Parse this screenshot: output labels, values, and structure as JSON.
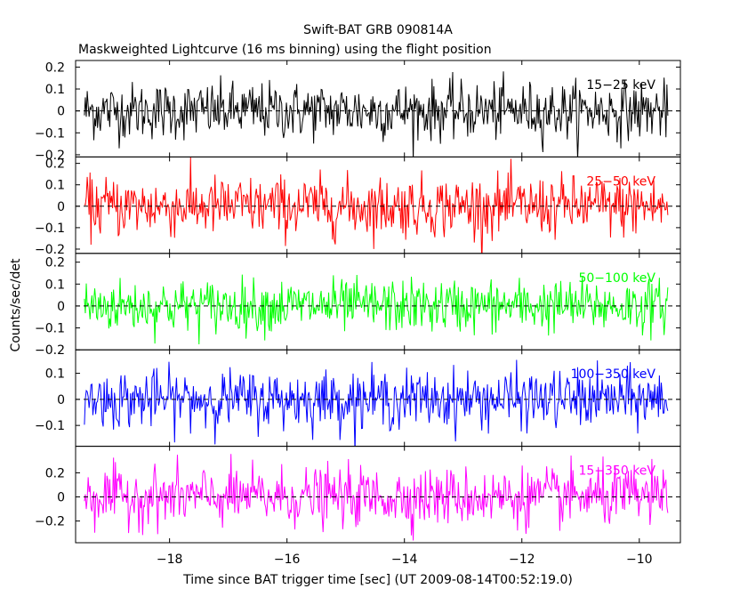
{
  "title": "Swift-BAT GRB 090814A",
  "subtitle": "Maskweighted Lightcurve (16 ms binning) using the flight position",
  "ylabel": "Counts/sec/det",
  "xlabel": "Time since BAT trigger time [sec] (UT 2009-08-14T00:52:19.0)",
  "chart_data": {
    "type": "line",
    "title": "Swift-BAT GRB 090814A",
    "subtitle": "Maskweighted Lightcurve (16 ms binning) using the flight position",
    "xlabel": "Time since BAT trigger time [sec] (UT 2009-08-14T00:52:19.0)",
    "ylabel": "Counts/sec/det",
    "xlim": [
      -19.6,
      -9.3
    ],
    "x_ticks": [
      -18,
      -16,
      -14,
      -12,
      -10
    ],
    "x_tick_labels": [
      "−18",
      "−16",
      "−14",
      "−12",
      "−10"
    ],
    "x_range_data": [
      -19.45,
      -9.5
    ],
    "bin_width_sec": 0.016,
    "grid": false,
    "panels": [
      {
        "name": "15-25 keV",
        "label": "15−25 keV",
        "color": "#000000",
        "ylim": [
          -0.21,
          0.23
        ],
        "yticks": [
          -0.2,
          -0.1,
          0,
          0.1,
          0.2
        ],
        "ytick_labels": [
          "−0.2",
          "−0.1",
          "0",
          "0.1",
          "0.2"
        ],
        "noise_sigma": 0.065,
        "mean": 0.0
      },
      {
        "name": "25-50 keV",
        "label": "25−50 keV",
        "color": "#ff0000",
        "ylim": [
          -0.22,
          0.23
        ],
        "yticks": [
          -0.2,
          -0.1,
          0,
          0.1,
          0.2
        ],
        "ytick_labels": [
          "−0.2",
          "−0.1",
          "0",
          "0.1",
          "0.2"
        ],
        "noise_sigma": 0.07,
        "mean": 0.0
      },
      {
        "name": "50-100 keV",
        "label": "50−100 keV",
        "color": "#00ff00",
        "ylim": [
          -0.2,
          0.24
        ],
        "yticks": [
          -0.2,
          -0.1,
          0,
          0.1,
          0.2
        ],
        "ytick_labels": [
          "−0.2",
          "−0.1",
          "0",
          "0.1",
          "0.2"
        ],
        "noise_sigma": 0.06,
        "mean": 0.0
      },
      {
        "name": "100-350 keV",
        "label": "100−350 keV",
        "color": "#0000ff",
        "ylim": [
          -0.18,
          0.19
        ],
        "yticks": [
          -0.1,
          0,
          0.1
        ],
        "ytick_labels": [
          "−0.1",
          "0",
          "0.1"
        ],
        "noise_sigma": 0.055,
        "mean": 0.0
      },
      {
        "name": "15-350 keV",
        "label": "15−350 keV",
        "color": "#ff00ff",
        "ylim": [
          -0.38,
          0.42
        ],
        "yticks": [
          -0.2,
          0,
          0.2
        ],
        "ytick_labels": [
          "−0.2",
          "0",
          "0.2"
        ],
        "noise_sigma": 0.12,
        "mean": 0.0
      }
    ]
  }
}
